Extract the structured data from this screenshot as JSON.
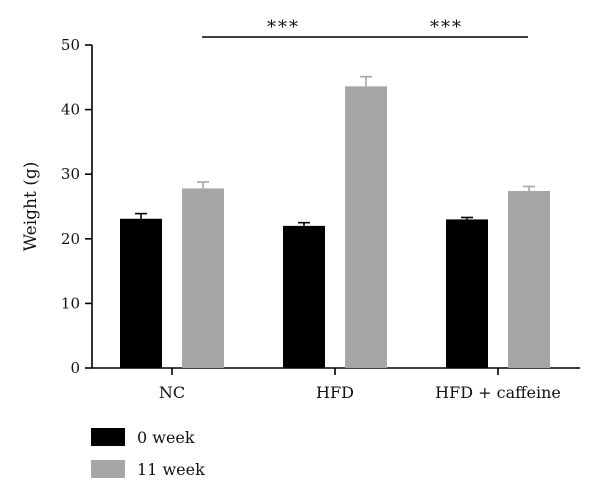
{
  "chart_data": {
    "type": "bar",
    "title": "",
    "xlabel": "",
    "ylabel": "Weight (g)",
    "ylim": [
      0,
      50
    ],
    "yticks": [
      0,
      10,
      20,
      30,
      40,
      50
    ],
    "grid": false,
    "legend": "bottom-left",
    "categories": [
      "NC",
      "HFD",
      "HFD + caffeine"
    ],
    "series": [
      {
        "name": "0 week",
        "color": "#000000",
        "values": [
          23.1,
          22.0,
          23.0
        ],
        "errors": [
          0.8,
          0.5,
          0.3
        ]
      },
      {
        "name": "11 week",
        "color": "#a6a6a6",
        "values": [
          27.8,
          43.6,
          27.4
        ],
        "errors": [
          1.0,
          1.5,
          0.7
        ]
      }
    ],
    "annotations": [
      {
        "label": "***",
        "from_category": 0,
        "to_category": 1
      },
      {
        "label": "***",
        "from_category": 1,
        "to_category": 2
      }
    ]
  }
}
